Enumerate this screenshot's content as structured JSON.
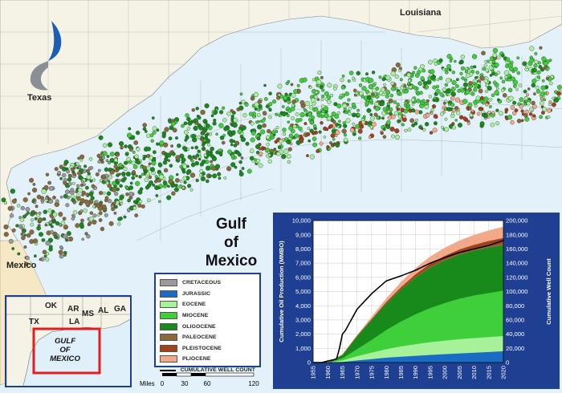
{
  "map_labels": {
    "texas": "Texas",
    "louisiana": "Louisiana",
    "mexico": "Mexico",
    "gulf": [
      "Gulf",
      "of",
      "Mexico"
    ]
  },
  "legend": {
    "items": [
      {
        "label": "CRETACEOUS",
        "color": "#9a9a9a"
      },
      {
        "label": "JURASSIC",
        "color": "#1a6bc4"
      },
      {
        "label": "EOCENE",
        "color": "#a7f19b"
      },
      {
        "label": "MIOCENE",
        "color": "#3fcf3a"
      },
      {
        "label": "OLIGOCENE",
        "color": "#188a1c"
      },
      {
        "label": "PALEOCENE",
        "color": "#8a6a3a"
      },
      {
        "label": "PLEISTOCENE",
        "color": "#a0431a"
      },
      {
        "label": "PLIOCENE",
        "color": "#f2a98a"
      }
    ],
    "well_count_label": "CUMULATIVE WELL COUNT"
  },
  "scale_bar": {
    "unit": "Miles",
    "ticks": [
      "0",
      "30",
      "60",
      "120"
    ]
  },
  "inset": {
    "states": [
      "OK",
      "AR",
      "TX",
      "LA",
      "MS",
      "AL",
      "GA"
    ],
    "gulf": [
      "GULF",
      "OF",
      "MEXICO"
    ]
  },
  "chart_data": {
    "type": "area",
    "x": [
      1955,
      1960,
      1965,
      1970,
      1975,
      1980,
      1985,
      1990,
      1995,
      2000,
      2005,
      2010,
      2015,
      2020
    ],
    "xticks": [
      "1955",
      "1960",
      "1965",
      "1970",
      "1975",
      "1980",
      "1985",
      "1990",
      "1995",
      "2000",
      "2005",
      "2010",
      "2015",
      "2020"
    ],
    "ylabel": "Cumulative Oil Production (MMBO)",
    "y2label": "Cumulative Well Count",
    "ylim": [
      0,
      10000
    ],
    "y2lim": [
      0,
      200000
    ],
    "yticks": [
      "0",
      "1,000",
      "2,000",
      "3,000",
      "4,000",
      "5,000",
      "6,000",
      "7,000",
      "8,000",
      "9,000",
      "10,000"
    ],
    "y2ticks": [
      "0",
      "20,000",
      "40,000",
      "60,000",
      "80,000",
      "100,000",
      "120,000",
      "140,000",
      "160,000",
      "180,000",
      "200,000"
    ],
    "series": [
      {
        "name": "JURASSIC",
        "color": "#1a6bc4",
        "values": [
          0,
          0,
          50,
          150,
          250,
          350,
          420,
          480,
          540,
          600,
          650,
          700,
          750,
          800
        ]
      },
      {
        "name": "EOCENE",
        "color": "#a7f19b",
        "values": [
          0,
          0,
          100,
          300,
          450,
          600,
          720,
          820,
          900,
          950,
          1000,
          1030,
          1050,
          1070
        ]
      },
      {
        "name": "MIOCENE",
        "color": "#3fcf3a",
        "values": [
          0,
          0,
          150,
          500,
          900,
          1350,
          1750,
          2100,
          2400,
          2650,
          2850,
          3000,
          3100,
          3200
        ]
      },
      {
        "name": "OLIGOCENE",
        "color": "#188a1c",
        "values": [
          0,
          0,
          250,
          900,
          1400,
          1850,
          2250,
          2600,
          2850,
          3000,
          3100,
          3150,
          3200,
          3200
        ]
      },
      {
        "name": "PALEOCENE",
        "color": "#8a6a3a",
        "values": [
          0,
          0,
          0,
          10,
          20,
          30,
          40,
          50,
          60,
          70,
          80,
          90,
          100,
          110
        ]
      },
      {
        "name": "PLEISTOCENE",
        "color": "#a0431a",
        "values": [
          0,
          0,
          0,
          20,
          50,
          90,
          130,
          170,
          210,
          250,
          290,
          330,
          370,
          400
        ]
      },
      {
        "name": "PLIOCENE",
        "color": "#f2a98a",
        "values": [
          0,
          0,
          0,
          50,
          150,
          250,
          350,
          430,
          500,
          560,
          620,
          680,
          730,
          780
        ]
      }
    ],
    "well_count": {
      "name": "CUMULATIVE WELL COUNT",
      "color": "#000000",
      "x": [
        1955,
        1958,
        1960,
        1961,
        1962,
        1963,
        1964,
        1965,
        1966,
        1970,
        1975,
        1980,
        1985,
        1990,
        1995,
        2000,
        2005,
        2010,
        2015,
        2020
      ],
      "values": [
        0,
        0,
        2000,
        3000,
        4000,
        5000,
        20000,
        40000,
        45000,
        75000,
        97000,
        115000,
        122000,
        130000,
        140000,
        148000,
        155000,
        160000,
        165000,
        172000
      ]
    },
    "grid": true
  }
}
